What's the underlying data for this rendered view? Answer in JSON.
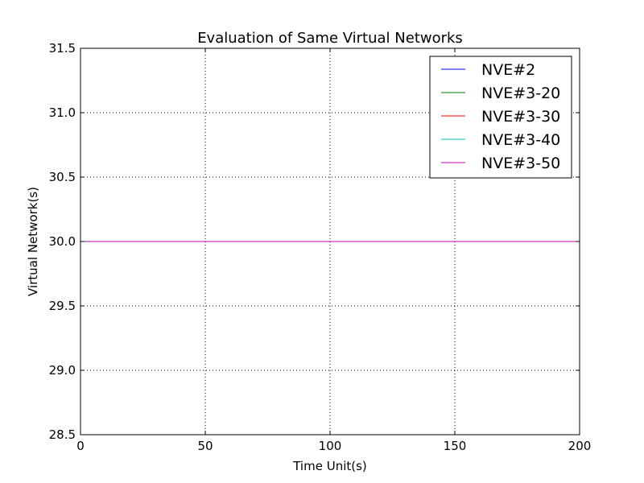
{
  "chart_data": {
    "type": "line",
    "title": "Evaluation of Same Virtual Networks",
    "xlabel": "Time Unit(s)",
    "ylabel": "Virtual Network(s)",
    "xlim": [
      0,
      200
    ],
    "ylim": [
      28.5,
      31.5
    ],
    "xticks": [
      0,
      50,
      100,
      150,
      200
    ],
    "xtick_labels": [
      "0",
      "50",
      "100",
      "150",
      "200"
    ],
    "yticks": [
      28.5,
      29.0,
      29.5,
      30.0,
      30.5,
      31.0,
      31.5
    ],
    "ytick_labels": [
      "28.5",
      "29.0",
      "29.5",
      "30.0",
      "30.5",
      "31.0",
      "31.5"
    ],
    "grid": true,
    "legend_position": "top-right",
    "x": [
      0,
      200
    ],
    "series": [
      {
        "name": "NVE#2",
        "color": "#0000ff",
        "values": [
          30,
          30
        ]
      },
      {
        "name": "NVE#3-20",
        "color": "#008000",
        "values": [
          30,
          30
        ]
      },
      {
        "name": "NVE#3-30",
        "color": "#ff0000",
        "values": [
          30,
          30
        ]
      },
      {
        "name": "NVE#3-40",
        "color": "#00bfbf",
        "values": [
          30,
          30
        ]
      },
      {
        "name": "NVE#3-50",
        "color": "#bf00bf",
        "values": [
          30,
          30
        ]
      }
    ]
  }
}
